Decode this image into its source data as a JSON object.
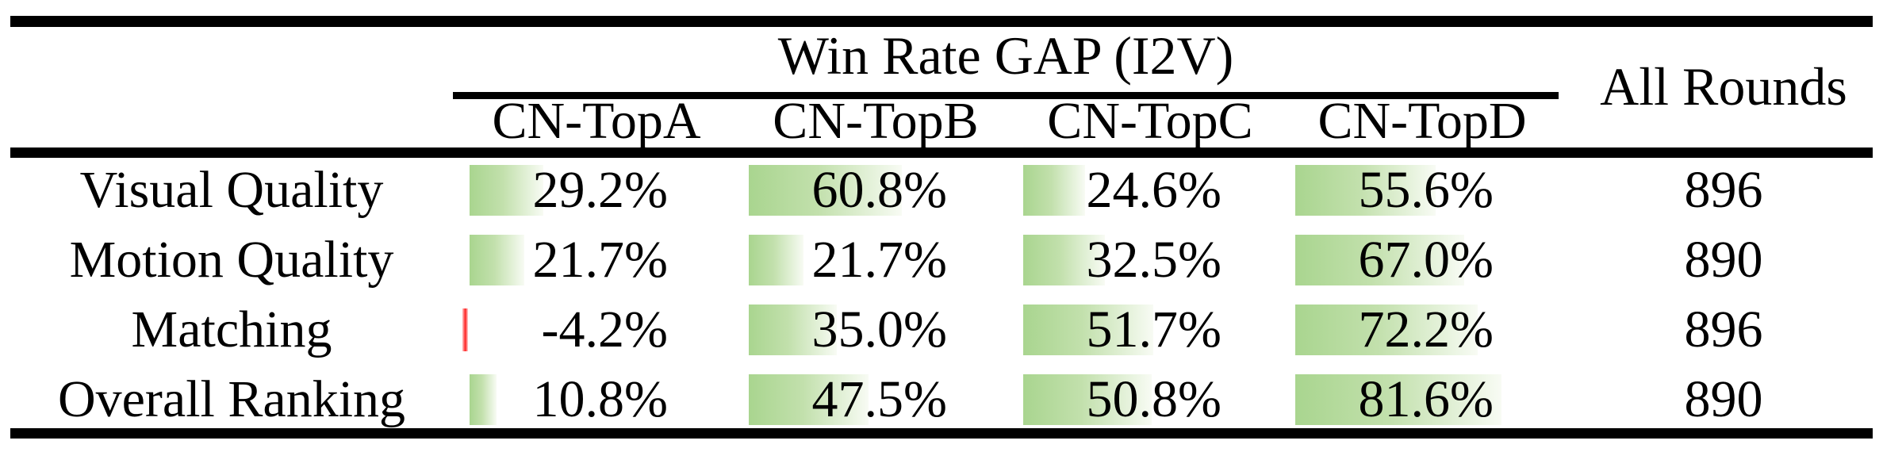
{
  "header": {
    "group": "Win Rate GAP (I2V)",
    "all_rounds": "All Rounds",
    "columns": [
      "CN-TopA",
      "CN-TopB",
      "CN-TopC",
      "CN-TopD"
    ]
  },
  "rows": [
    {
      "label": "Visual Quality",
      "values": [
        29.2,
        60.8,
        24.6,
        55.6
      ],
      "display": [
        "29.2%",
        "60.8%",
        "24.6%",
        "55.6%"
      ],
      "all_rounds": "896"
    },
    {
      "label": "Motion Quality",
      "values": [
        21.7,
        21.7,
        32.5,
        67.0
      ],
      "display": [
        "21.7%",
        "21.7%",
        "32.5%",
        "67.0%"
      ],
      "all_rounds": "890"
    },
    {
      "label": "Matching",
      "values": [
        -4.2,
        35.0,
        51.7,
        72.2
      ],
      "display": [
        "-4.2%",
        "35.0%",
        "51.7%",
        "72.2%"
      ],
      "all_rounds": "896"
    },
    {
      "label": "Overall Ranking",
      "values": [
        10.8,
        47.5,
        50.8,
        81.6
      ],
      "display": [
        "10.8%",
        "47.5%",
        "50.8%",
        "81.6%"
      ],
      "all_rounds": "890"
    }
  ],
  "colors": {
    "bar_positive_start": "#a9d58f",
    "bar_positive_mid": "#c2e0ac",
    "bar_positive_fade": "#e9f4e0",
    "bar_positive_end": "#f8fbf4",
    "bar_negative": "#ff2222",
    "bar_negative_light": "#ffc9c9",
    "rule": "#000000"
  },
  "chart_data": {
    "type": "table",
    "title": "Win Rate GAP (I2V)",
    "columns": [
      "CN-TopA",
      "CN-TopB",
      "CN-TopC",
      "CN-TopD",
      "All Rounds"
    ],
    "row_labels": [
      "Visual Quality",
      "Motion Quality",
      "Matching",
      "Overall Ranking"
    ],
    "series": [
      {
        "name": "CN-TopA",
        "values": [
          29.2,
          21.7,
          -4.2,
          10.8
        ]
      },
      {
        "name": "CN-TopB",
        "values": [
          60.8,
          21.7,
          35.0,
          47.5
        ]
      },
      {
        "name": "CN-TopC",
        "values": [
          24.6,
          32.5,
          51.7,
          50.8
        ]
      },
      {
        "name": "CN-TopD",
        "values": [
          55.6,
          67.0,
          72.2,
          81.6
        ]
      }
    ],
    "all_rounds": [
      896,
      890,
      896,
      890
    ],
    "bar_style": "in-cell data bars, green gradient for positive, red for negative, length proportional to percent (100% = full cell)"
  }
}
